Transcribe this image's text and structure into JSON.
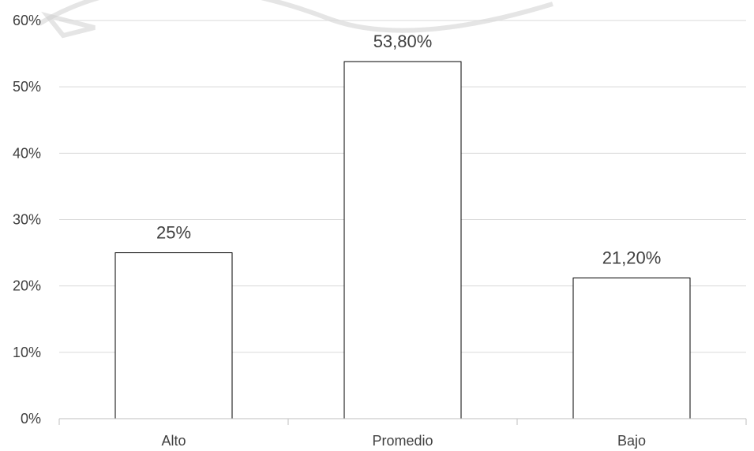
{
  "chart_data": {
    "type": "bar",
    "categories": [
      "Alto",
      "Promedio",
      "Bajo"
    ],
    "values": [
      25,
      53.8,
      21.2
    ],
    "data_labels": [
      "25%",
      "53,80%",
      "21,20%"
    ],
    "y_ticks": [
      {
        "value": 0,
        "label": "0%"
      },
      {
        "value": 10,
        "label": "10%"
      },
      {
        "value": 20,
        "label": "20%"
      },
      {
        "value": 30,
        "label": "30%"
      },
      {
        "value": 40,
        "label": "40%"
      },
      {
        "value": 50,
        "label": "50%"
      },
      {
        "value": 60,
        "label": "60%"
      }
    ],
    "ylim": [
      0,
      60
    ],
    "grid": true,
    "legend": "none",
    "bar_fill": "#ffffff",
    "bar_stroke": "#000000",
    "grid_color": "#d9d9d9",
    "text_color": "#404040"
  }
}
